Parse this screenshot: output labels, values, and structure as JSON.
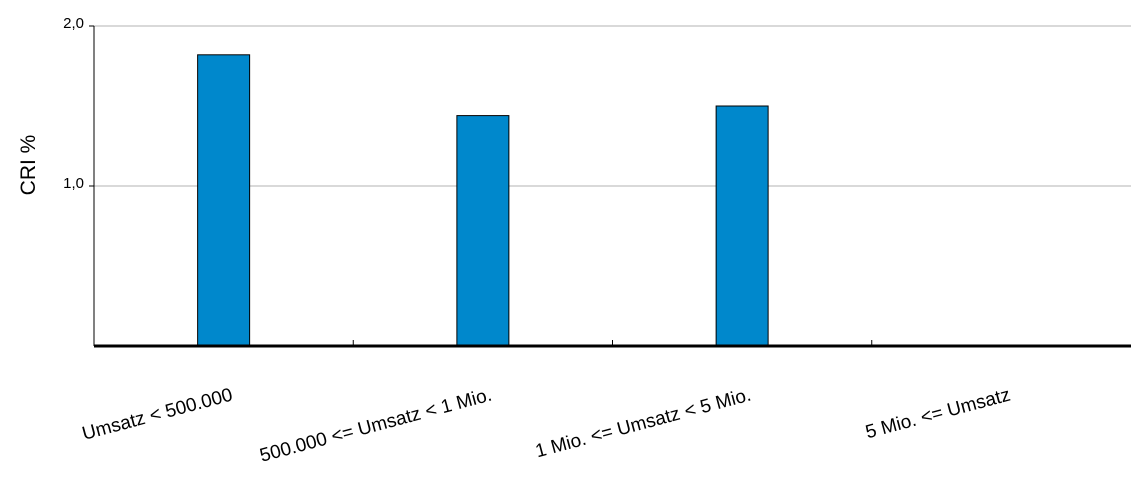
{
  "chart_data": {
    "type": "bar",
    "categories": [
      "Umsatz < 500.000",
      "500.000 <= Umsatz < 1 Mio.",
      "1 Mio. <= Umsatz < 5 Mio.",
      "5 Mio. <= Umsatz"
    ],
    "values": [
      1.82,
      1.44,
      1.5,
      null
    ],
    "title": "",
    "xlabel": "",
    "ylabel": "CRI %",
    "ylim": [
      0,
      2.0
    ],
    "yticks": [
      "1,0",
      "2,0"
    ],
    "ytick_values": [
      1.0,
      2.0
    ],
    "grid": true,
    "colors": {
      "bar": "#0088cc",
      "bar_stroke": "#000000",
      "grid": "#b3b3b3",
      "axis": "#000000"
    }
  }
}
